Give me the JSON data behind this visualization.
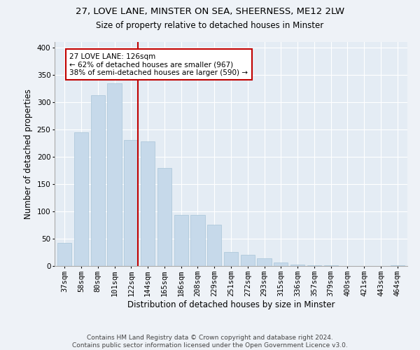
{
  "title1": "27, LOVE LANE, MINSTER ON SEA, SHEERNESS, ME12 2LW",
  "title2": "Size of property relative to detached houses in Minster",
  "xlabel": "Distribution of detached houses by size in Minster",
  "ylabel": "Number of detached properties",
  "bar_labels": [
    "37sqm",
    "58sqm",
    "80sqm",
    "101sqm",
    "122sqm",
    "144sqm",
    "165sqm",
    "186sqm",
    "208sqm",
    "229sqm",
    "251sqm",
    "272sqm",
    "293sqm",
    "315sqm",
    "336sqm",
    "357sqm",
    "379sqm",
    "400sqm",
    "421sqm",
    "443sqm",
    "464sqm"
  ],
  "bar_values": [
    42,
    245,
    312,
    335,
    230,
    228,
    180,
    93,
    93,
    75,
    25,
    20,
    14,
    6,
    2,
    1,
    1,
    0,
    0,
    0,
    1
  ],
  "bar_color": "#c6d9ea",
  "bar_edge_color": "#a8c4d8",
  "annotation_text": "27 LOVE LANE: 126sqm\n← 62% of detached houses are smaller (967)\n38% of semi-detached houses are larger (590) →",
  "annotation_box_color": "#ffffff",
  "annotation_box_edge_color": "#c00000",
  "red_line_color": "#c00000",
  "footer_line1": "Contains HM Land Registry data © Crown copyright and database right 2024.",
  "footer_line2": "Contains public sector information licensed under the Open Government Licence v3.0.",
  "ylim": [
    0,
    410
  ],
  "yticks": [
    0,
    50,
    100,
    150,
    200,
    250,
    300,
    350,
    400
  ],
  "title1_fontsize": 9.5,
  "title2_fontsize": 8.5,
  "xlabel_fontsize": 8.5,
  "ylabel_fontsize": 8.5,
  "tick_fontsize": 7.5,
  "annot_fontsize": 7.5,
  "footer_fontsize": 6.5,
  "background_color": "#eef2f7",
  "plot_bg_color": "#e4ecf4"
}
